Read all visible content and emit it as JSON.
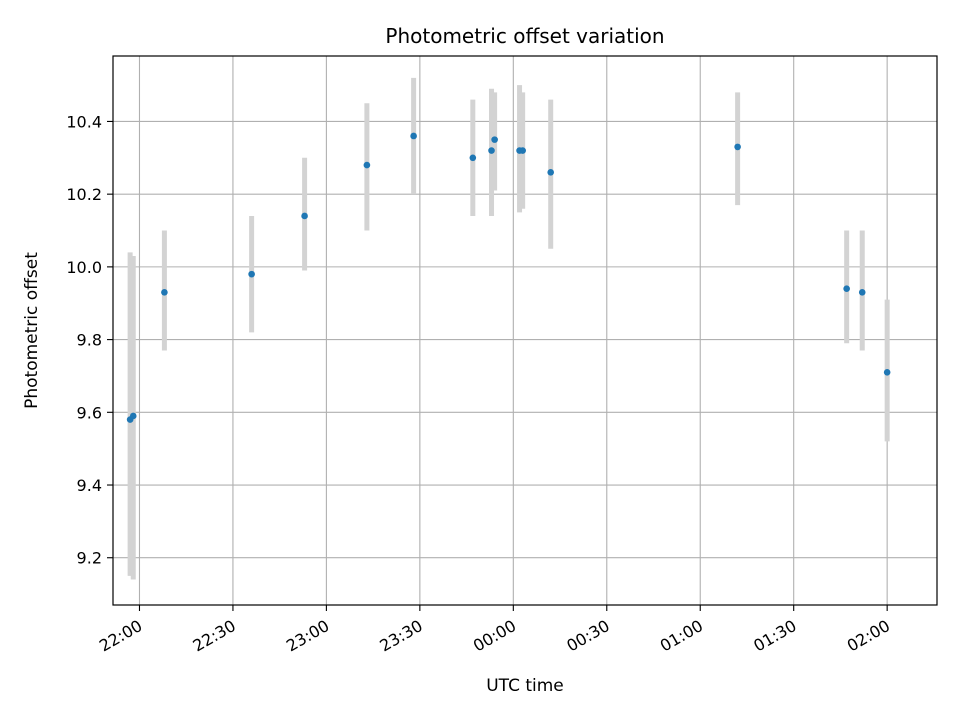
{
  "chart_data": {
    "type": "scatter",
    "title": "Photometric offset variation",
    "xlabel": "UTC time",
    "ylabel": "Photometric offset",
    "grid": true,
    "x_tick_labels": [
      "22:00",
      "22:30",
      "23:00",
      "23:30",
      "00:00",
      "00:30",
      "01:00",
      "01:30",
      "02:00"
    ],
    "x_tick_minutes": [
      1320,
      1350,
      1380,
      1410,
      1440,
      1470,
      1500,
      1530,
      1560
    ],
    "xlim_minutes": [
      1311.5,
      1576
    ],
    "y_ticks": [
      9.2,
      9.4,
      9.6,
      9.8,
      10.0,
      10.2,
      10.4
    ],
    "y_tick_labels": [
      "9.2",
      "9.4",
      "9.6",
      "9.8",
      "10.0",
      "10.2",
      "10.4"
    ],
    "ylim": [
      9.07,
      10.58
    ],
    "marker_color": "#1f77b4",
    "errorbar_color": "#d3d3d3",
    "points": [
      {
        "time": "21:57",
        "y": 9.58,
        "yerr_low": 9.15,
        "yerr_high": 10.04
      },
      {
        "time": "21:58",
        "y": 9.59,
        "yerr_low": 9.14,
        "yerr_high": 10.03
      },
      {
        "time": "22:08",
        "y": 9.93,
        "yerr_low": 9.77,
        "yerr_high": 10.1
      },
      {
        "time": "22:36",
        "y": 9.98,
        "yerr_low": 9.82,
        "yerr_high": 10.14
      },
      {
        "time": "22:53",
        "y": 10.14,
        "yerr_low": 9.99,
        "yerr_high": 10.3
      },
      {
        "time": "23:13",
        "y": 10.28,
        "yerr_low": 10.1,
        "yerr_high": 10.45
      },
      {
        "time": "23:28",
        "y": 10.36,
        "yerr_low": 10.2,
        "yerr_high": 10.52
      },
      {
        "time": "23:47",
        "y": 10.3,
        "yerr_low": 10.14,
        "yerr_high": 10.46
      },
      {
        "time": "23:53",
        "y": 10.32,
        "yerr_low": 10.14,
        "yerr_high": 10.49
      },
      {
        "time": "23:54",
        "y": 10.35,
        "yerr_low": 10.21,
        "yerr_high": 10.48
      },
      {
        "time": "00:02",
        "y": 10.32,
        "yerr_low": 10.15,
        "yerr_high": 10.5
      },
      {
        "time": "00:03",
        "y": 10.32,
        "yerr_low": 10.16,
        "yerr_high": 10.48
      },
      {
        "time": "00:12",
        "y": 10.26,
        "yerr_low": 10.05,
        "yerr_high": 10.46
      },
      {
        "time": "01:12",
        "y": 10.33,
        "yerr_low": 10.17,
        "yerr_high": 10.48
      },
      {
        "time": "01:47",
        "y": 9.94,
        "yerr_low": 9.79,
        "yerr_high": 10.1
      },
      {
        "time": "01:52",
        "y": 9.93,
        "yerr_low": 9.77,
        "yerr_high": 10.1
      },
      {
        "time": "02:00",
        "y": 9.71,
        "yerr_low": 9.52,
        "yerr_high": 9.91
      }
    ]
  }
}
